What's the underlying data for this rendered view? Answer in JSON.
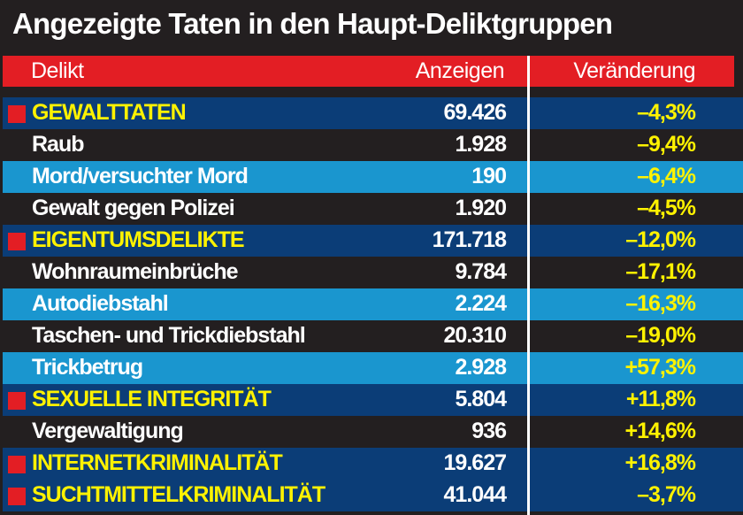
{
  "title": "Angezeigte Taten in den Haupt-Deliktgruppen",
  "chart_data": {
    "type": "table",
    "title": "Angezeigte Taten in den Haupt-Deliktgruppen",
    "columns": [
      "Delikt",
      "Anzeigen",
      "Veränderung"
    ],
    "rows": [
      {
        "label": "GEWALTTATEN",
        "count": "69.426",
        "change": "–4,3%",
        "kind": "group"
      },
      {
        "label": "Raub",
        "count": "1.928",
        "change": "–9,4%",
        "kind": "black"
      },
      {
        "label": "Mord/versuchter Mord",
        "count": "190",
        "change": "–6,4%",
        "kind": "light"
      },
      {
        "label": "Gewalt gegen Polizei",
        "count": "1.920",
        "change": "–4,5%",
        "kind": "black"
      },
      {
        "label": "EIGENTUMSDELIKTE",
        "count": "171.718",
        "change": "–12,0%",
        "kind": "group"
      },
      {
        "label": "Wohnraumeinbrüche",
        "count": "9.784",
        "change": "–17,1%",
        "kind": "black"
      },
      {
        "label": "Autodiebstahl",
        "count": "2.224",
        "change": "–16,3%",
        "kind": "light"
      },
      {
        "label": "Taschen- und Trickdiebstahl",
        "count": "20.310",
        "change": "–19,0%",
        "kind": "black"
      },
      {
        "label": "Trickbetrug",
        "count": "2.928",
        "change": "+57,3%",
        "kind": "light"
      },
      {
        "label": "SEXUELLE INTEGRITÄT",
        "count": "5.804",
        "change": "+11,8%",
        "kind": "group"
      },
      {
        "label": "Vergewaltigung",
        "count": "936",
        "change": "+14,6%",
        "kind": "black"
      },
      {
        "label": "INTERNETKRIMINALITÄT",
        "count": "19.627",
        "change": "+16,8%",
        "kind": "group"
      },
      {
        "label": "SUCHTMITTELKRIMINALITÄT",
        "count": "41.044",
        "change": "–3,7%",
        "kind": "group"
      }
    ]
  },
  "colors": {
    "header": "#e31e24",
    "group": "#0b3d77",
    "light": "#1a96cf",
    "dark": "#231f20",
    "highlight": "#fff200"
  }
}
